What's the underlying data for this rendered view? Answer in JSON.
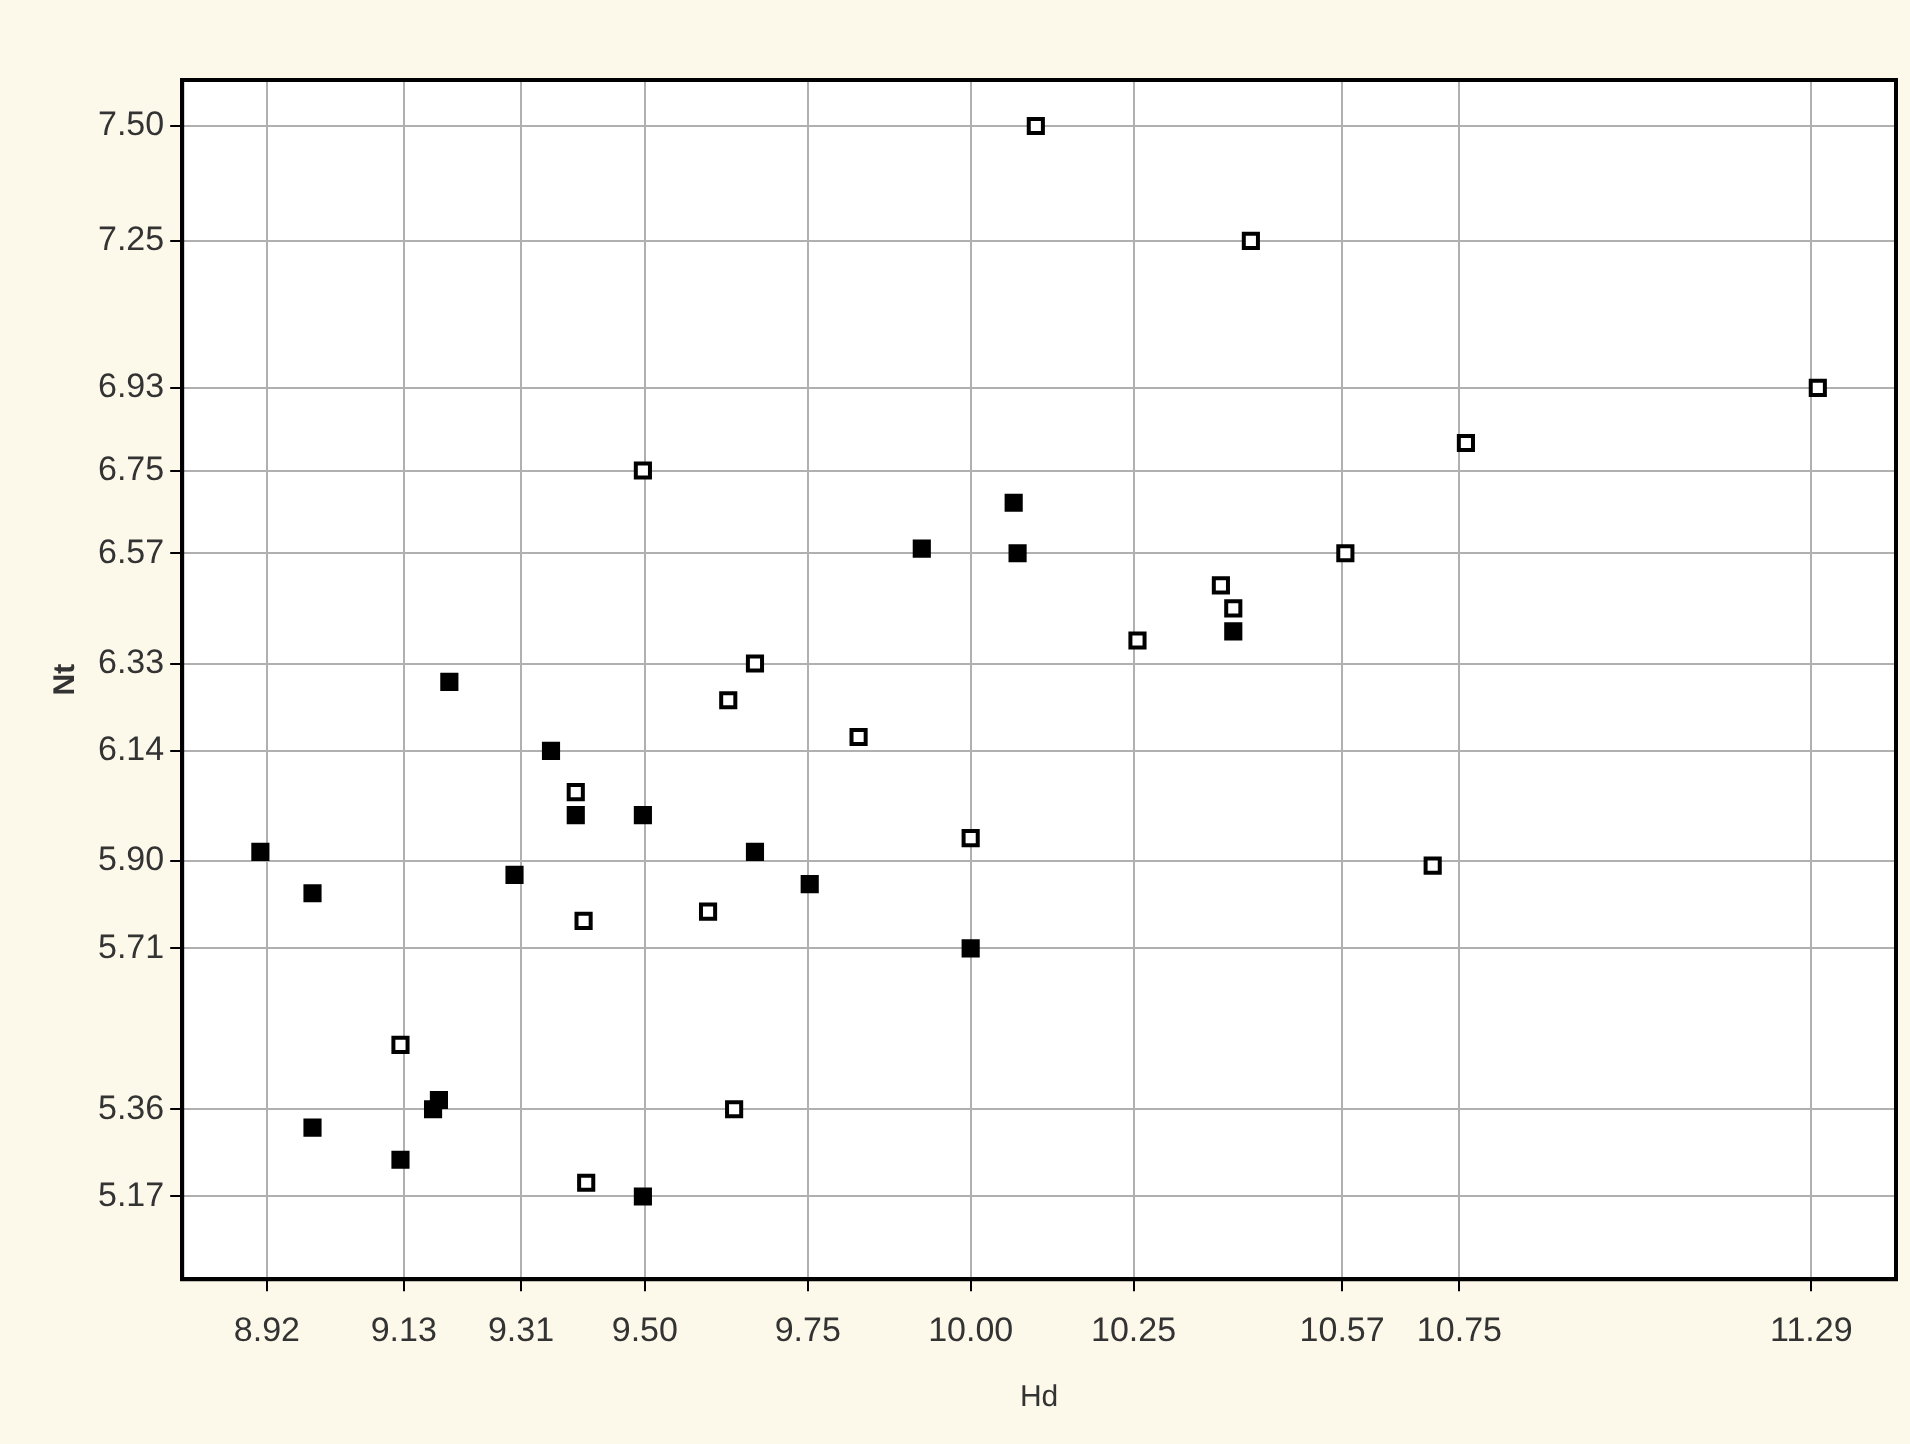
{
  "chart_data": {
    "type": "scatter",
    "xlabel": "Hd",
    "ylabel": "Nt",
    "series": [
      {
        "color": "#000000",
        "x": [
          9.2,
          9.356,
          9.394,
          9.497,
          9.669,
          9.753,
          8.91,
          8.99,
          9.3,
          8.99,
          9.125,
          9.175,
          9.184,
          9.497,
          10.0,
          9.925,
          10.066,
          10.072,
          10.403
        ],
        "values": [
          6.29,
          6.14,
          6.0,
          6.0,
          5.92,
          5.85,
          5.92,
          5.83,
          5.87,
          5.32,
          5.25,
          5.36,
          5.38,
          5.17,
          5.71,
          6.58,
          6.68,
          6.57,
          6.4
        ]
      },
      {
        "color": "#ffffff",
        "x": [
          10.1,
          10.43,
          11.3,
          10.76,
          9.497,
          10.575,
          10.384,
          10.403,
          10.256,
          9.669,
          9.628,
          9.828,
          9.394,
          10.0,
          10.709,
          9.597,
          9.406,
          9.125,
          9.637,
          9.41
        ],
        "values": [
          7.5,
          7.25,
          6.93,
          6.81,
          6.75,
          6.57,
          6.5,
          6.45,
          6.38,
          6.33,
          6.25,
          6.17,
          6.05,
          5.95,
          5.89,
          5.79,
          5.77,
          5.5,
          5.36,
          5.2
        ]
      }
    ],
    "xlim": [
      8.79,
      11.42
    ],
    "ylim": [
      4.99,
      7.6
    ],
    "xticks": [
      8.92,
      9.13,
      9.31,
      {
        "value": 9.5,
        "label": "9.50"
      },
      9.75,
      {
        "value": 10,
        "label": "10.00"
      },
      10.25,
      10.57,
      10.75,
      11.29
    ],
    "yticks": [
      5.17,
      5.36,
      5.71,
      {
        "value": 5.9,
        "label": "5.90"
      },
      6.14,
      6.33,
      6.57,
      6.75,
      6.93,
      7.25,
      {
        "value": 7.5,
        "label": "7.50"
      }
    ],
    "grid": true,
    "marker": "square",
    "legend": false
  }
}
